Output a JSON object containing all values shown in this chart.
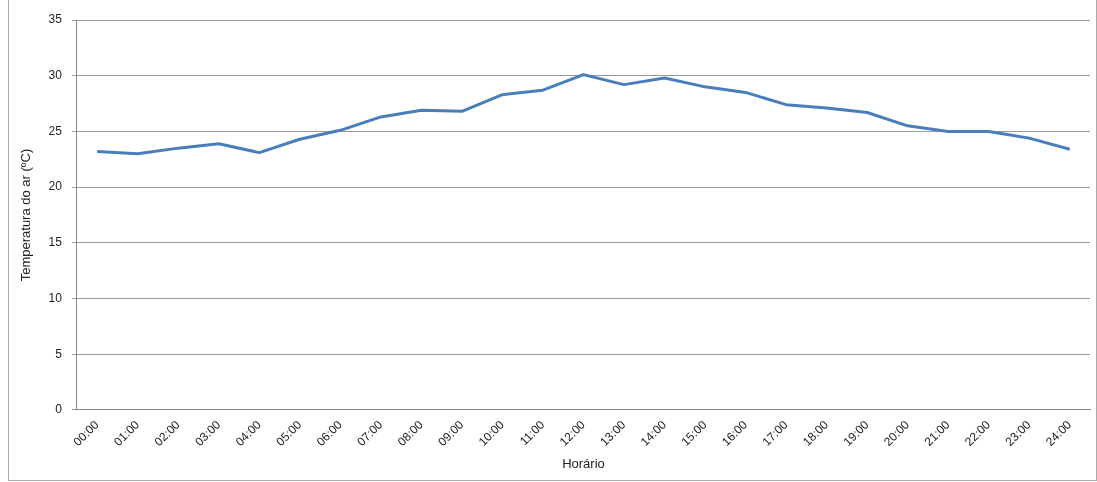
{
  "chart_data": {
    "type": "line",
    "xlabel": "Horário",
    "ylabel": "Temperatura do ar (ºC)",
    "categories": [
      "00:00",
      "01:00",
      "02:00",
      "03:00",
      "04:00",
      "05:00",
      "06:00",
      "07:00",
      "08:00",
      "09:00",
      "10:00",
      "11:00",
      "12:00",
      "13:00",
      "14:00",
      "15:00",
      "16:00",
      "17:00",
      "18:00",
      "19:00",
      "20:00",
      "21:00",
      "22:00",
      "23:00",
      "24:00"
    ],
    "series": [
      {
        "color": "#4a7ebb",
        "values": [
          23.2,
          23.0,
          23.5,
          23.9,
          23.1,
          24.3,
          25.1,
          26.3,
          26.9,
          26.8,
          28.3,
          28.7,
          30.1,
          29.2,
          29.8,
          29.0,
          28.5,
          27.4,
          27.1,
          26.7,
          25.5,
          25.0,
          25.0,
          24.4,
          23.4
        ]
      }
    ],
    "ylim": [
      0,
      35
    ],
    "yticks": [
      0,
      5,
      10,
      15,
      20,
      25,
      30,
      35
    ],
    "grid": "y",
    "legend": false,
    "marker": "none",
    "line_style": "solid"
  }
}
